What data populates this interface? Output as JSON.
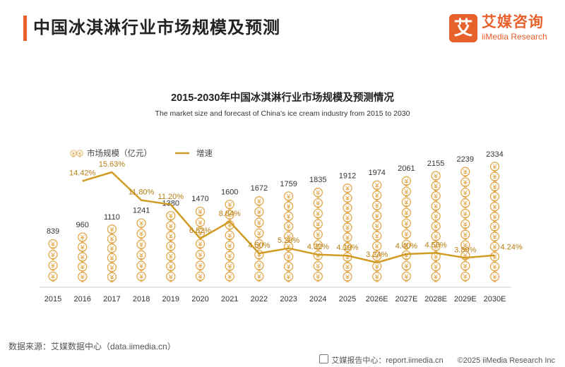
{
  "header": {
    "title": "中国冰淇淋行业市场规模及预测"
  },
  "logo": {
    "mark": "艾",
    "name_cn": "艾媒咨询",
    "name_en": "iiMedia Research"
  },
  "chart_data": {
    "type": "bar",
    "title": "2015-2030年中国冰淇淋行业市场规模及预测情况",
    "subtitle": "The market size and forecast of China's ice cream industry from 2015 to 2030",
    "categories": [
      "2015",
      "2016",
      "2017",
      "2018",
      "2019",
      "2020",
      "2021",
      "2022",
      "2023",
      "2024",
      "2025",
      "2026E",
      "2027E",
      "2028E",
      "2029E",
      "2030E"
    ],
    "series": [
      {
        "name": "市场规模（亿元）",
        "kind": "bar",
        "pictogram": "yen-coin-icon",
        "values": [
          839,
          960,
          1110,
          1241,
          1380,
          1470,
          1600,
          1672,
          1759,
          1835,
          1912,
          1974,
          2061,
          2155,
          2239,
          2334
        ]
      },
      {
        "name": "增速",
        "kind": "line",
        "values": [
          null,
          14.42,
          15.63,
          11.8,
          11.2,
          6.52,
          8.84,
          4.5,
          5.2,
          4.32,
          4.19,
          3.24,
          4.4,
          4.56,
          3.89,
          4.24
        ],
        "labels": [
          "",
          "14.42%",
          "15.63%",
          "11.80%",
          "11.20%",
          "6.52%",
          "8.84%",
          "4.50%",
          "5.20%",
          "4.32%",
          "4.19%",
          "3.24%",
          "4.40%",
          "4.56%",
          "3.89%",
          "4.24%"
        ]
      }
    ],
    "legend": "top-left",
    "colors": {
      "bar": "#e0a84a",
      "line": "#d19c23",
      "growth_label": "#b57e12",
      "value_label": "#333333"
    }
  },
  "footer": {
    "source": "数据来源：艾媒数据中心（data.iimedia.cn）",
    "report": "艾媒报告中心：report.iimedia.cn",
    "copyright": "©2025  iiMedia Research  Inc"
  }
}
